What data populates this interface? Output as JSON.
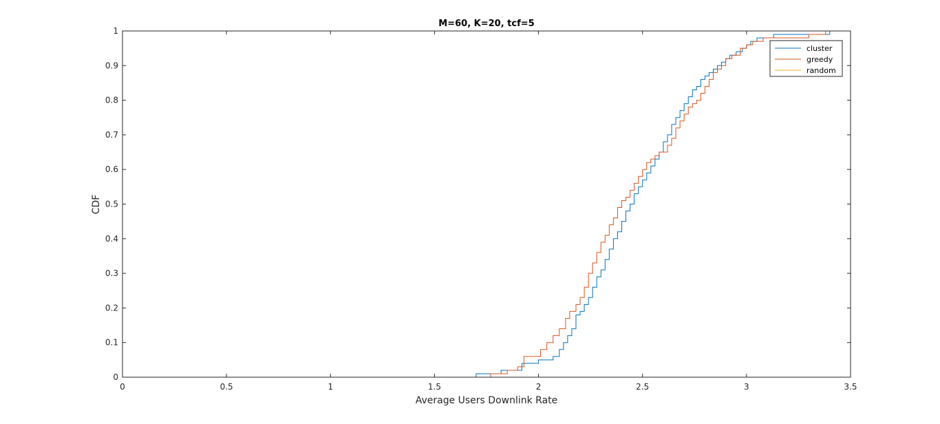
{
  "chart_data": {
    "type": "line",
    "subtype": "ecdf-stairs",
    "title": "M=60, K=20, tcf=5",
    "xlabel": "Average Users Downlink Rate",
    "ylabel": "CDF",
    "xlim": [
      0,
      3.5
    ],
    "ylim": [
      0,
      1
    ],
    "xticks": [
      0,
      0.5,
      1,
      1.5,
      2,
      2.5,
      3,
      3.5
    ],
    "xtick_labels": [
      "0",
      "0.5",
      "1",
      "1.5",
      "2",
      "2.5",
      "3",
      "3.5"
    ],
    "yticks": [
      0,
      0.1,
      0.2,
      0.3,
      0.4,
      0.5,
      0.6,
      0.7,
      0.8,
      0.9,
      1
    ],
    "ytick_labels": [
      "0",
      "0.1",
      "0.2",
      "0.3",
      "0.4",
      "0.5",
      "0.6",
      "0.7",
      "0.8",
      "0.9",
      "1"
    ],
    "grid": false,
    "legend_position": "top-right",
    "series": [
      {
        "name": "cluster",
        "color": "#0072BD",
        "x": [
          1.7,
          1.82,
          1.92,
          2.0,
          2.07,
          2.1,
          2.12,
          2.14,
          2.16,
          2.18,
          2.2,
          2.22,
          2.24,
          2.26,
          2.28,
          2.3,
          2.32,
          2.34,
          2.36,
          2.38,
          2.4,
          2.42,
          2.44,
          2.46,
          2.48,
          2.5,
          2.52,
          2.54,
          2.56,
          2.58,
          2.6,
          2.62,
          2.64,
          2.66,
          2.68,
          2.7,
          2.72,
          2.74,
          2.76,
          2.78,
          2.8,
          2.82,
          2.84,
          2.86,
          2.88,
          2.9,
          2.92,
          2.95,
          2.98,
          3.0,
          3.02,
          3.05,
          3.13,
          3.4
        ],
        "y": [
          0.01,
          0.02,
          0.04,
          0.05,
          0.06,
          0.08,
          0.1,
          0.12,
          0.14,
          0.18,
          0.19,
          0.21,
          0.23,
          0.26,
          0.29,
          0.31,
          0.34,
          0.37,
          0.4,
          0.42,
          0.45,
          0.48,
          0.5,
          0.53,
          0.55,
          0.57,
          0.59,
          0.61,
          0.63,
          0.65,
          0.68,
          0.7,
          0.73,
          0.75,
          0.77,
          0.79,
          0.81,
          0.83,
          0.84,
          0.86,
          0.87,
          0.88,
          0.89,
          0.9,
          0.91,
          0.92,
          0.93,
          0.94,
          0.95,
          0.96,
          0.97,
          0.98,
          0.99,
          1.0
        ]
      },
      {
        "name": "greedy",
        "color": "#D95319",
        "x": [
          1.77,
          1.85,
          1.9,
          1.93,
          2.01,
          2.04,
          2.07,
          2.1,
          2.13,
          2.15,
          2.18,
          2.2,
          2.22,
          2.24,
          2.26,
          2.28,
          2.3,
          2.32,
          2.34,
          2.36,
          2.38,
          2.4,
          2.42,
          2.44,
          2.46,
          2.48,
          2.5,
          2.52,
          2.54,
          2.56,
          2.58,
          2.62,
          2.64,
          2.66,
          2.68,
          2.7,
          2.72,
          2.74,
          2.76,
          2.78,
          2.8,
          2.82,
          2.84,
          2.86,
          2.88,
          2.9,
          2.93,
          2.97,
          3.0,
          3.03,
          3.08,
          3.3,
          3.38
        ],
        "y": [
          0.01,
          0.02,
          0.03,
          0.06,
          0.08,
          0.1,
          0.12,
          0.14,
          0.17,
          0.19,
          0.21,
          0.23,
          0.26,
          0.3,
          0.33,
          0.36,
          0.39,
          0.41,
          0.44,
          0.46,
          0.49,
          0.51,
          0.52,
          0.54,
          0.56,
          0.58,
          0.6,
          0.62,
          0.63,
          0.64,
          0.65,
          0.67,
          0.69,
          0.72,
          0.74,
          0.76,
          0.78,
          0.79,
          0.8,
          0.82,
          0.84,
          0.86,
          0.88,
          0.89,
          0.9,
          0.92,
          0.93,
          0.95,
          0.96,
          0.97,
          0.98,
          0.99,
          1.0
        ]
      },
      {
        "name": "random",
        "color": "#EDB120",
        "x": [
          0.0,
          0.0
        ],
        "y": [
          0.0,
          1.0
        ]
      }
    ]
  }
}
